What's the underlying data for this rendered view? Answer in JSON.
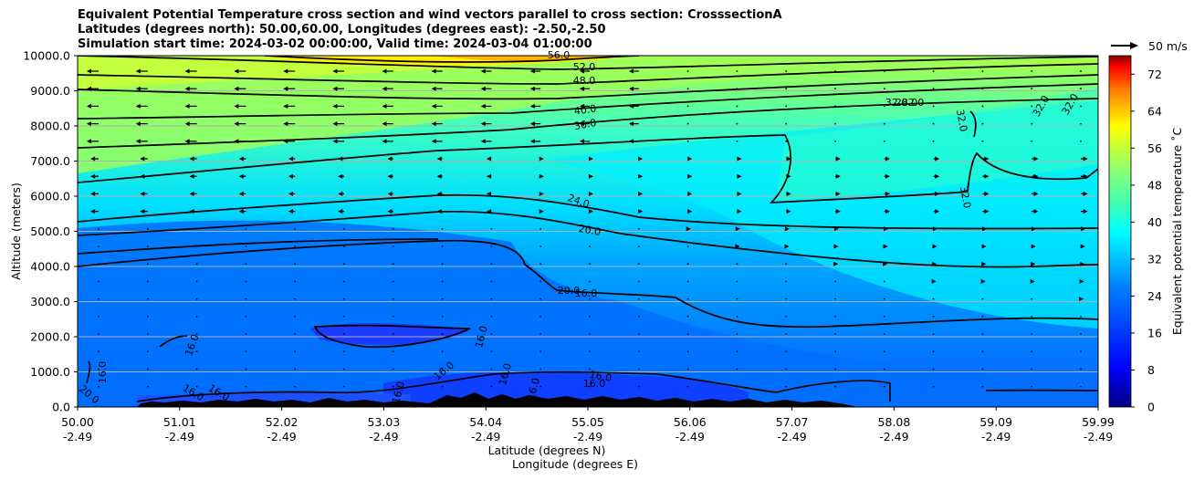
{
  "chart_data": {
    "type": "heatmap",
    "title": [
      "Equivalent Potential Temperature cross section and wind vectors parallel to cross section: CrosssectionA",
      "Latitudes (degrees north): 50.00,60.00, Longitudes (degrees east): -2.50,-2.50",
      "Simulation start time: 2024-03-02 00:00:00, Valid time: 2024-03-04 01:00:00"
    ],
    "ylabel": "Altitude (meters)",
    "xlabel_lat": "Latitude (degrees N)",
    "xlabel_lon": "Longitude (degrees E)",
    "ylim": [
      0,
      10000
    ],
    "y_ticks": [
      "0.0",
      "1000.0",
      "2000.0",
      "3000.0",
      "4000.0",
      "5000.0",
      "6000.0",
      "7000.0",
      "8000.0",
      "9000.0",
      "10000.0"
    ],
    "x_ticks_lat": [
      "50.00",
      "51.01",
      "52.02",
      "53.03",
      "54.04",
      "55.05",
      "56.06",
      "57.07",
      "58.08",
      "59.09",
      "59.99"
    ],
    "x_ticks_lon": [
      "-2.49",
      "-2.49",
      "-2.49",
      "-2.49",
      "-2.49",
      "-2.49",
      "-2.49",
      "-2.49",
      "-2.49",
      "-2.49",
      "-2.49"
    ],
    "colorbar": {
      "label": "Equivalent potential temperature ˚C",
      "range": [
        0,
        76
      ],
      "ticks": [
        "0",
        "8",
        "16",
        "24",
        "32",
        "40",
        "48",
        "56",
        "64",
        "72"
      ]
    },
    "quiver_key": "50 m/s",
    "contour_labels": [
      "56.0",
      "52.0",
      "48.0",
      "40.0",
      "36.0",
      "32.0",
      "32.0",
      "32.0",
      "32.0",
      "32.0",
      "32.0",
      "28.0",
      "24.0",
      "20.0",
      "20.0",
      "16.0",
      "16.0",
      "16.0",
      "16.0",
      "16.0",
      "16.0",
      "16.0",
      "16.0",
      "16.0",
      "20.0",
      "16.0",
      "16.0",
      "16.0"
    ]
  },
  "colors": {
    "cmap": [
      "#00007f",
      "#0000ff",
      "#007fff",
      "#00ffff",
      "#7fff7f",
      "#ffff00",
      "#ff7f00",
      "#ff0000",
      "#7f0000"
    ]
  }
}
